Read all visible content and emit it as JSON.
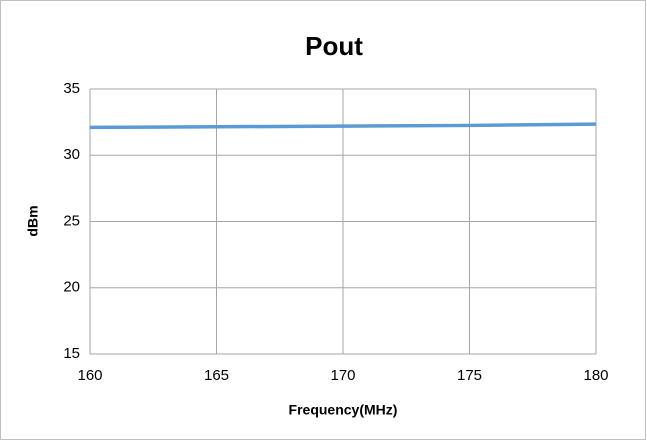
{
  "chart_data": {
    "type": "line",
    "title": "Pout",
    "x_label": "Frequency(MHz)",
    "y_label": "dBm",
    "x": [
      160,
      165,
      170,
      175,
      180
    ],
    "series": [
      {
        "name": "Pout",
        "color": "#5b9bd5",
        "values": [
          32.1,
          32.15,
          32.2,
          32.25,
          32.35
        ]
      }
    ],
    "xlim": [
      160,
      180
    ],
    "xticks": [
      160,
      165,
      170,
      175,
      180
    ],
    "ylim": [
      15,
      35
    ],
    "yticks": [
      15,
      20,
      25,
      30,
      35
    ],
    "grid": true
  }
}
